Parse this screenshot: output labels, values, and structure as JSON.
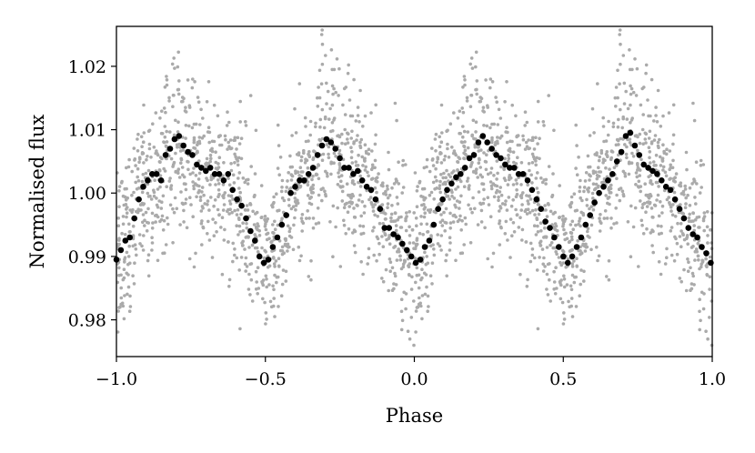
{
  "chart_data": {
    "type": "scatter",
    "title": "",
    "xlabel": "Phase",
    "ylabel": "Normalised flux",
    "xlim": [
      -1.0,
      1.0
    ],
    "ylim": [
      0.9742,
      1.0263
    ],
    "x_ticks": [
      -1.0,
      -0.5,
      0.0,
      0.5,
      1.0
    ],
    "x_tick_labels": [
      "−1.0",
      "−0.5",
      "0.0",
      "0.5",
      "1.0"
    ],
    "y_ticks": [
      0.98,
      0.99,
      1.0,
      1.01,
      1.02
    ],
    "y_tick_labels": [
      "0.98",
      "0.99",
      "1.00",
      "1.01",
      "1.02"
    ],
    "grid": false,
    "legend": "none",
    "raw_color": "#aaaaaa",
    "binned_color": "#000000",
    "series": [
      {
        "role": "binned",
        "x": [
          -1.0,
          -0.985,
          -0.97,
          -0.955,
          -0.94,
          -0.925,
          -0.91,
          -0.895,
          -0.88,
          -0.865,
          -0.85,
          -0.835,
          -0.82,
          -0.805,
          -0.79,
          -0.775,
          -0.76,
          -0.745,
          -0.73,
          -0.715,
          -0.7,
          -0.685,
          -0.67,
          -0.655,
          -0.64,
          -0.625,
          -0.61,
          -0.595,
          -0.58,
          -0.565,
          -0.55,
          -0.535,
          -0.52,
          -0.505,
          -0.49,
          -0.475,
          -0.46,
          -0.445,
          -0.43,
          -0.415,
          -0.4,
          -0.385,
          -0.37,
          -0.355,
          -0.34,
          -0.325,
          -0.31,
          -0.295,
          -0.28,
          -0.265,
          -0.25,
          -0.235,
          -0.22,
          -0.205,
          -0.19,
          -0.175,
          -0.16,
          -0.145,
          -0.13,
          -0.115,
          -0.1,
          -0.085,
          -0.07,
          -0.055,
          -0.04,
          -0.025,
          -0.01,
          0.005,
          0.02,
          0.035,
          0.05,
          0.065,
          0.08,
          0.095,
          0.11,
          0.125,
          0.14,
          0.155,
          0.17,
          0.185,
          0.2,
          0.215,
          0.23,
          0.245,
          0.26,
          0.275,
          0.29,
          0.305,
          0.32,
          0.335,
          0.35,
          0.365,
          0.38,
          0.395,
          0.41,
          0.425,
          0.44,
          0.455,
          0.47,
          0.485,
          0.5,
          0.515,
          0.53,
          0.545,
          0.56,
          0.575,
          0.59,
          0.605,
          0.62,
          0.635,
          0.65,
          0.665,
          0.68,
          0.695,
          0.71,
          0.725,
          0.74,
          0.755,
          0.77,
          0.785,
          0.8,
          0.815,
          0.83,
          0.845,
          0.86,
          0.875,
          0.89,
          0.905,
          0.92,
          0.935,
          0.95,
          0.965,
          0.98,
          0.995
        ],
        "y": [
          0.9895,
          0.991,
          0.9925,
          0.993,
          0.996,
          0.999,
          1.001,
          1.002,
          1.003,
          1.003,
          1.002,
          1.006,
          1.007,
          1.0085,
          1.009,
          1.0075,
          1.0065,
          1.006,
          1.0045,
          1.004,
          1.0035,
          1.004,
          1.003,
          1.003,
          1.002,
          1.003,
          1.0005,
          0.999,
          0.998,
          0.996,
          0.994,
          0.9925,
          0.99,
          0.989,
          0.9895,
          0.9915,
          0.993,
          0.995,
          0.9965,
          1.0,
          1.001,
          1.002,
          1.002,
          1.003,
          1.004,
          1.006,
          1.0075,
          1.0085,
          1.008,
          1.007,
          1.0055,
          1.004,
          1.004,
          1.003,
          1.0035,
          1.002,
          1.001,
          1.0005,
          0.999,
          0.9975,
          0.9945,
          0.9945,
          0.9935,
          0.993,
          0.992,
          0.991,
          0.99,
          0.989,
          0.9895,
          0.9915,
          0.9925,
          0.995,
          0.9975,
          0.999,
          1.0005,
          1.0015,
          1.0025,
          1.003,
          1.004,
          1.0055,
          1.006,
          1.008,
          1.009,
          1.008,
          1.007,
          1.006,
          1.0055,
          1.0045,
          1.004,
          1.004,
          1.003,
          1.003,
          1.002,
          1.0005,
          0.999,
          0.9975,
          0.9955,
          0.9945,
          0.993,
          0.9915,
          0.99,
          0.989,
          0.99,
          0.9915,
          0.993,
          0.995,
          0.9965,
          0.9985,
          1.0,
          1.001,
          1.002,
          1.003,
          1.005,
          1.0065,
          1.009,
          1.0095,
          1.0075,
          1.006,
          1.0045,
          1.004,
          1.0035,
          1.003,
          1.002,
          1.001,
          1.0005,
          0.999,
          0.9975,
          0.996,
          0.9945,
          0.9935,
          0.993,
          0.9915,
          0.9905,
          0.989
        ]
      }
    ],
    "raw_scatter": {
      "points_per_cycle": 1300,
      "seed": 20231,
      "noise_sd": 0.0064
    }
  }
}
